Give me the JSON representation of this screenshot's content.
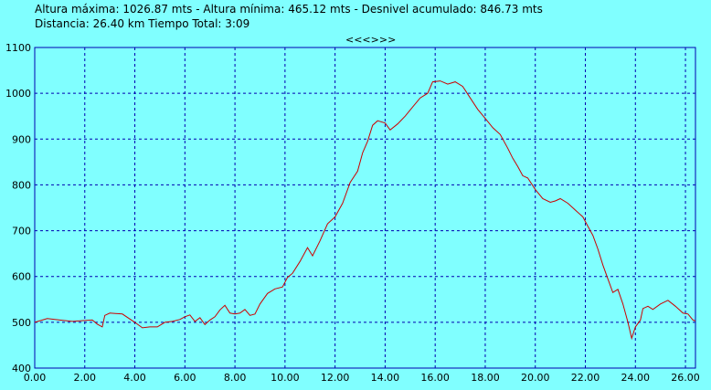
{
  "stats": {
    "line1": "Altura máxima: 1026.87 mts - Altura mínima: 465.12 mts - Desnivel acumulado: 846.73 mts",
    "line2": "Distancia: 26.40 km  Tiempo Total: 3:09"
  },
  "nav_label": "<<<>>>",
  "colors": {
    "background": "#80ffff",
    "axis": "#0000b0",
    "grid": "#0000b0",
    "line": "#cc0000"
  },
  "chart_data": {
    "type": "line",
    "xlim": [
      0,
      26.4
    ],
    "ylim": [
      400,
      1100
    ],
    "grid": true,
    "x_ticks": [
      0,
      2,
      4,
      6,
      8,
      10,
      12,
      14,
      16,
      18,
      20,
      22,
      24,
      26
    ],
    "x_tick_labels": [
      "0.00",
      "2.00",
      "4.00",
      "6.00",
      "8.00",
      "10.00",
      "12.00",
      "14.00",
      "16.00",
      "18.00",
      "20.00",
      "22.00",
      "24.00",
      "26.00"
    ],
    "y_ticks": [
      400,
      500,
      600,
      700,
      800,
      900,
      1000,
      1100
    ],
    "y_tick_labels": [
      "400",
      "500",
      "600",
      "700",
      "800",
      "900",
      "1000",
      "1100"
    ],
    "series": [
      {
        "points": [
          [
            0.0,
            500
          ],
          [
            0.5,
            508
          ],
          [
            1.0,
            505
          ],
          [
            1.5,
            502
          ],
          [
            2.0,
            504
          ],
          [
            2.3,
            505
          ],
          [
            2.5,
            496
          ],
          [
            2.7,
            490
          ],
          [
            2.8,
            515
          ],
          [
            3.0,
            520
          ],
          [
            3.5,
            518
          ],
          [
            4.0,
            500
          ],
          [
            4.3,
            488
          ],
          [
            4.6,
            490
          ],
          [
            4.9,
            490
          ],
          [
            5.2,
            500
          ],
          [
            5.5,
            502
          ],
          [
            5.8,
            506
          ],
          [
            6.0,
            512
          ],
          [
            6.2,
            516
          ],
          [
            6.4,
            502
          ],
          [
            6.6,
            510
          ],
          [
            6.8,
            495
          ],
          [
            7.0,
            505
          ],
          [
            7.2,
            512
          ],
          [
            7.4,
            527
          ],
          [
            7.6,
            537
          ],
          [
            7.8,
            520
          ],
          [
            8.0,
            518
          ],
          [
            8.2,
            520
          ],
          [
            8.4,
            528
          ],
          [
            8.6,
            515
          ],
          [
            8.8,
            518
          ],
          [
            9.0,
            540
          ],
          [
            9.3,
            563
          ],
          [
            9.6,
            573
          ],
          [
            9.9,
            577
          ],
          [
            10.1,
            598
          ],
          [
            10.3,
            607
          ],
          [
            10.6,
            633
          ],
          [
            10.9,
            663
          ],
          [
            11.1,
            645
          ],
          [
            11.4,
            678
          ],
          [
            11.7,
            715
          ],
          [
            12.0,
            730
          ],
          [
            12.3,
            760
          ],
          [
            12.6,
            805
          ],
          [
            12.9,
            830
          ],
          [
            13.1,
            870
          ],
          [
            13.3,
            895
          ],
          [
            13.5,
            930
          ],
          [
            13.7,
            940
          ],
          [
            14.0,
            935
          ],
          [
            14.2,
            920
          ],
          [
            14.5,
            933
          ],
          [
            14.8,
            950
          ],
          [
            15.1,
            970
          ],
          [
            15.4,
            990
          ],
          [
            15.7,
            1000
          ],
          [
            15.9,
            1025
          ],
          [
            16.2,
            1027
          ],
          [
            16.5,
            1020
          ],
          [
            16.8,
            1025
          ],
          [
            17.1,
            1015
          ],
          [
            17.4,
            990
          ],
          [
            17.7,
            965
          ],
          [
            18.0,
            945
          ],
          [
            18.3,
            925
          ],
          [
            18.6,
            910
          ],
          [
            18.9,
            880
          ],
          [
            19.1,
            858
          ],
          [
            19.3,
            840
          ],
          [
            19.5,
            820
          ],
          [
            19.7,
            815
          ],
          [
            20.0,
            790
          ],
          [
            20.3,
            770
          ],
          [
            20.6,
            762
          ],
          [
            20.8,
            765
          ],
          [
            21.0,
            770
          ],
          [
            21.3,
            760
          ],
          [
            21.6,
            745
          ],
          [
            21.9,
            730
          ],
          [
            22.1,
            710
          ],
          [
            22.3,
            690
          ],
          [
            22.5,
            660
          ],
          [
            22.7,
            625
          ],
          [
            22.9,
            595
          ],
          [
            23.1,
            565
          ],
          [
            23.3,
            572
          ],
          [
            23.5,
            540
          ],
          [
            23.7,
            500
          ],
          [
            23.85,
            465
          ],
          [
            24.0,
            490
          ],
          [
            24.2,
            505
          ],
          [
            24.3,
            530
          ],
          [
            24.5,
            535
          ],
          [
            24.7,
            528
          ],
          [
            25.0,
            540
          ],
          [
            25.3,
            548
          ],
          [
            25.6,
            535
          ],
          [
            25.9,
            520
          ],
          [
            26.1,
            518
          ],
          [
            26.3,
            505
          ],
          [
            26.4,
            503
          ]
        ]
      }
    ]
  }
}
